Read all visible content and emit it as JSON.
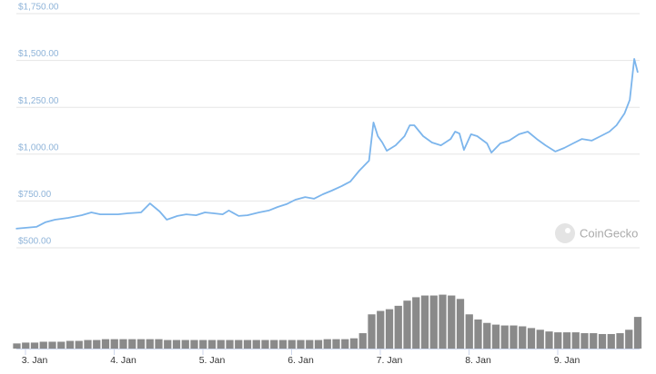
{
  "chart_data": [
    {
      "type": "line",
      "annotation": "CoinGecko",
      "x": [
        2.79,
        3.02,
        3.12,
        3.23,
        3.38,
        3.53,
        3.64,
        3.74,
        3.84,
        3.94,
        4.05,
        4.2,
        4.3,
        4.41,
        4.49,
        4.61,
        4.71,
        4.82,
        4.92,
        5.02,
        5.12,
        5.19,
        5.3,
        5.4,
        5.53,
        5.64,
        5.74,
        5.84,
        5.94,
        6.05,
        6.15,
        6.25,
        6.35,
        6.46,
        6.56,
        6.66,
        6.77,
        6.82,
        6.87,
        6.92,
        6.97,
        7.07,
        7.17,
        7.23,
        7.28,
        7.38,
        7.48,
        7.58,
        7.69,
        7.74,
        7.79,
        7.84,
        7.92,
        7.99,
        8.1,
        8.15,
        8.25,
        8.35,
        8.46,
        8.56,
        8.66,
        8.76,
        8.87,
        8.97,
        9.07,
        9.17,
        9.28,
        9.38,
        9.48,
        9.56,
        9.65,
        9.71,
        9.76,
        9.8
      ],
      "values": [
        602,
        612,
        636,
        650,
        660,
        674,
        689,
        679,
        679,
        679,
        684,
        689,
        737,
        694,
        650,
        670,
        679,
        674,
        689,
        684,
        679,
        699,
        670,
        674,
        689,
        699,
        718,
        733,
        757,
        771,
        762,
        786,
        805,
        829,
        854,
        912,
        965,
        1169,
        1096,
        1062,
        1018,
        1047,
        1096,
        1154,
        1154,
        1096,
        1062,
        1047,
        1081,
        1120,
        1110,
        1023,
        1106,
        1096,
        1057,
        1008,
        1057,
        1072,
        1106,
        1120,
        1081,
        1047,
        1014,
        1033,
        1057,
        1081,
        1072,
        1096,
        1120,
        1154,
        1217,
        1290,
        1508,
        1435
      ],
      "color": "#7cb5ec",
      "ylim": [
        500,
        1750
      ],
      "yticks": [
        {
          "value": 500,
          "label": "$500.00"
        },
        {
          "value": 750,
          "label": "$750.00"
        },
        {
          "value": 1000,
          "label": "$1,000.00"
        },
        {
          "value": 1250,
          "label": "$1,250.00"
        },
        {
          "value": 1500,
          "label": "$1,500.00"
        },
        {
          "value": 1750,
          "label": "$1,750.00"
        }
      ],
      "grid": true
    },
    {
      "type": "bar",
      "x": [
        2.8,
        2.9,
        3.0,
        3.1,
        3.2,
        3.3,
        3.4,
        3.5,
        3.6,
        3.7,
        3.8,
        3.9,
        4.0,
        4.1,
        4.2,
        4.3,
        4.4,
        4.5,
        4.6,
        4.7,
        4.8,
        4.9,
        5.0,
        5.1,
        5.2,
        5.3,
        5.4,
        5.5,
        5.6,
        5.7,
        5.8,
        5.9,
        6.0,
        6.1,
        6.2,
        6.3,
        6.4,
        6.5,
        6.6,
        6.7,
        6.8,
        6.9,
        7.0,
        7.1,
        7.2,
        7.3,
        7.4,
        7.5,
        7.6,
        7.7,
        7.8,
        7.9,
        8.0,
        8.1,
        8.2,
        8.3,
        8.4,
        8.5,
        8.6,
        8.7,
        8.8,
        8.9,
        9.0,
        9.1,
        9.2,
        9.3,
        9.4,
        9.5,
        9.6,
        9.7,
        9.8
      ],
      "values": [
        6,
        7,
        7,
        8,
        8,
        8,
        9,
        9,
        10,
        10,
        11,
        11,
        11,
        11,
        11,
        11,
        11,
        10,
        10,
        10,
        10,
        10,
        10,
        10,
        10,
        10,
        10,
        10,
        10,
        10,
        10,
        10,
        10,
        10,
        10,
        11,
        11,
        11,
        12,
        18,
        40,
        44,
        46,
        50,
        56,
        60,
        62,
        62,
        63,
        62,
        58,
        40,
        34,
        30,
        28,
        27,
        27,
        26,
        24,
        22,
        20,
        19,
        19,
        19,
        18,
        18,
        17,
        17,
        18,
        22,
        37
      ],
      "color": "#8a8a8a",
      "ylim": [
        0,
        70
      ],
      "xticks": [
        {
          "value": 3,
          "label": "3. Jan"
        },
        {
          "value": 4,
          "label": "4. Jan"
        },
        {
          "value": 5,
          "label": "5. Jan"
        },
        {
          "value": 6,
          "label": "6. Jan"
        },
        {
          "value": 7,
          "label": "7. Jan"
        },
        {
          "value": 8,
          "label": "8. Jan"
        },
        {
          "value": 9,
          "label": "9. Jan"
        }
      ]
    }
  ]
}
